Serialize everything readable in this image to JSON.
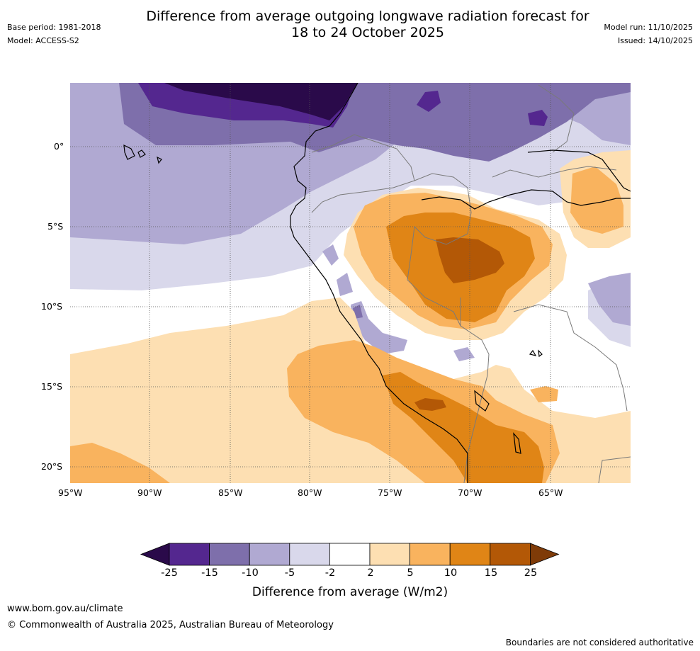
{
  "header": {
    "title_line1": "Difference from average outgoing longwave radiation forecast for",
    "title_line2": "18 to 24 October 2025",
    "base_period": "Base period: 1981-2018",
    "model": "Model: ACCESS-S2",
    "model_run": "Model run: 11/10/2025",
    "issued": "Issued: 14/10/2025"
  },
  "map": {
    "lat_labels": [
      "0°",
      "5°S",
      "10°S",
      "15°S",
      "20°S"
    ],
    "lon_labels": [
      "95°W",
      "90°W",
      "85°W",
      "80°W",
      "75°W",
      "70°W",
      "65°W"
    ]
  },
  "legend": {
    "label": "Difference from average (W/m2)",
    "ticks": [
      "-25",
      "-15",
      "-10",
      "-5",
      "-2",
      "2",
      "5",
      "10",
      "15",
      "25"
    ],
    "colors": [
      "#2a0a4a",
      "#54278f",
      "#7e6fab",
      "#b0a9d2",
      "#d9d8eb",
      "#ffffff",
      "#fddfb2",
      "#f9b35e",
      "#e08516",
      "#b35806",
      "#7f3b08"
    ]
  },
  "footer": {
    "url": "www.bom.gov.au/climate",
    "copyright": "© Commonwealth of Australia 2025, Australian Bureau of Meteorology",
    "disclaimer": "Boundaries are not considered authoritative"
  }
}
